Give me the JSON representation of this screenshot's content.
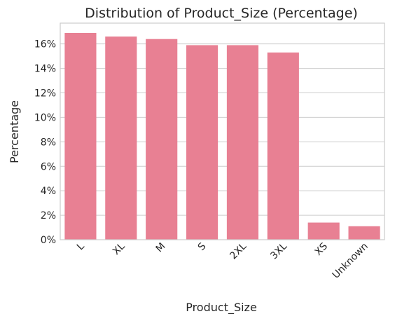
{
  "chart_data": {
    "type": "bar",
    "title": "Distribution of Product_Size (Percentage)",
    "xlabel": "Product_Size",
    "ylabel": "Percentage",
    "categories": [
      "L",
      "XL",
      "M",
      "S",
      "2XL",
      "3XL",
      "XS",
      "Unknown"
    ],
    "values": [
      16.9,
      16.6,
      16.4,
      15.9,
      15.9,
      15.3,
      1.4,
      1.1
    ],
    "yticks": [
      "0%",
      "2%",
      "4%",
      "6%",
      "8%",
      "10%",
      "12%",
      "14%",
      "16%"
    ],
    "ylim": [
      0,
      17.7
    ],
    "grid": true,
    "bar_color": "#e88093"
  }
}
